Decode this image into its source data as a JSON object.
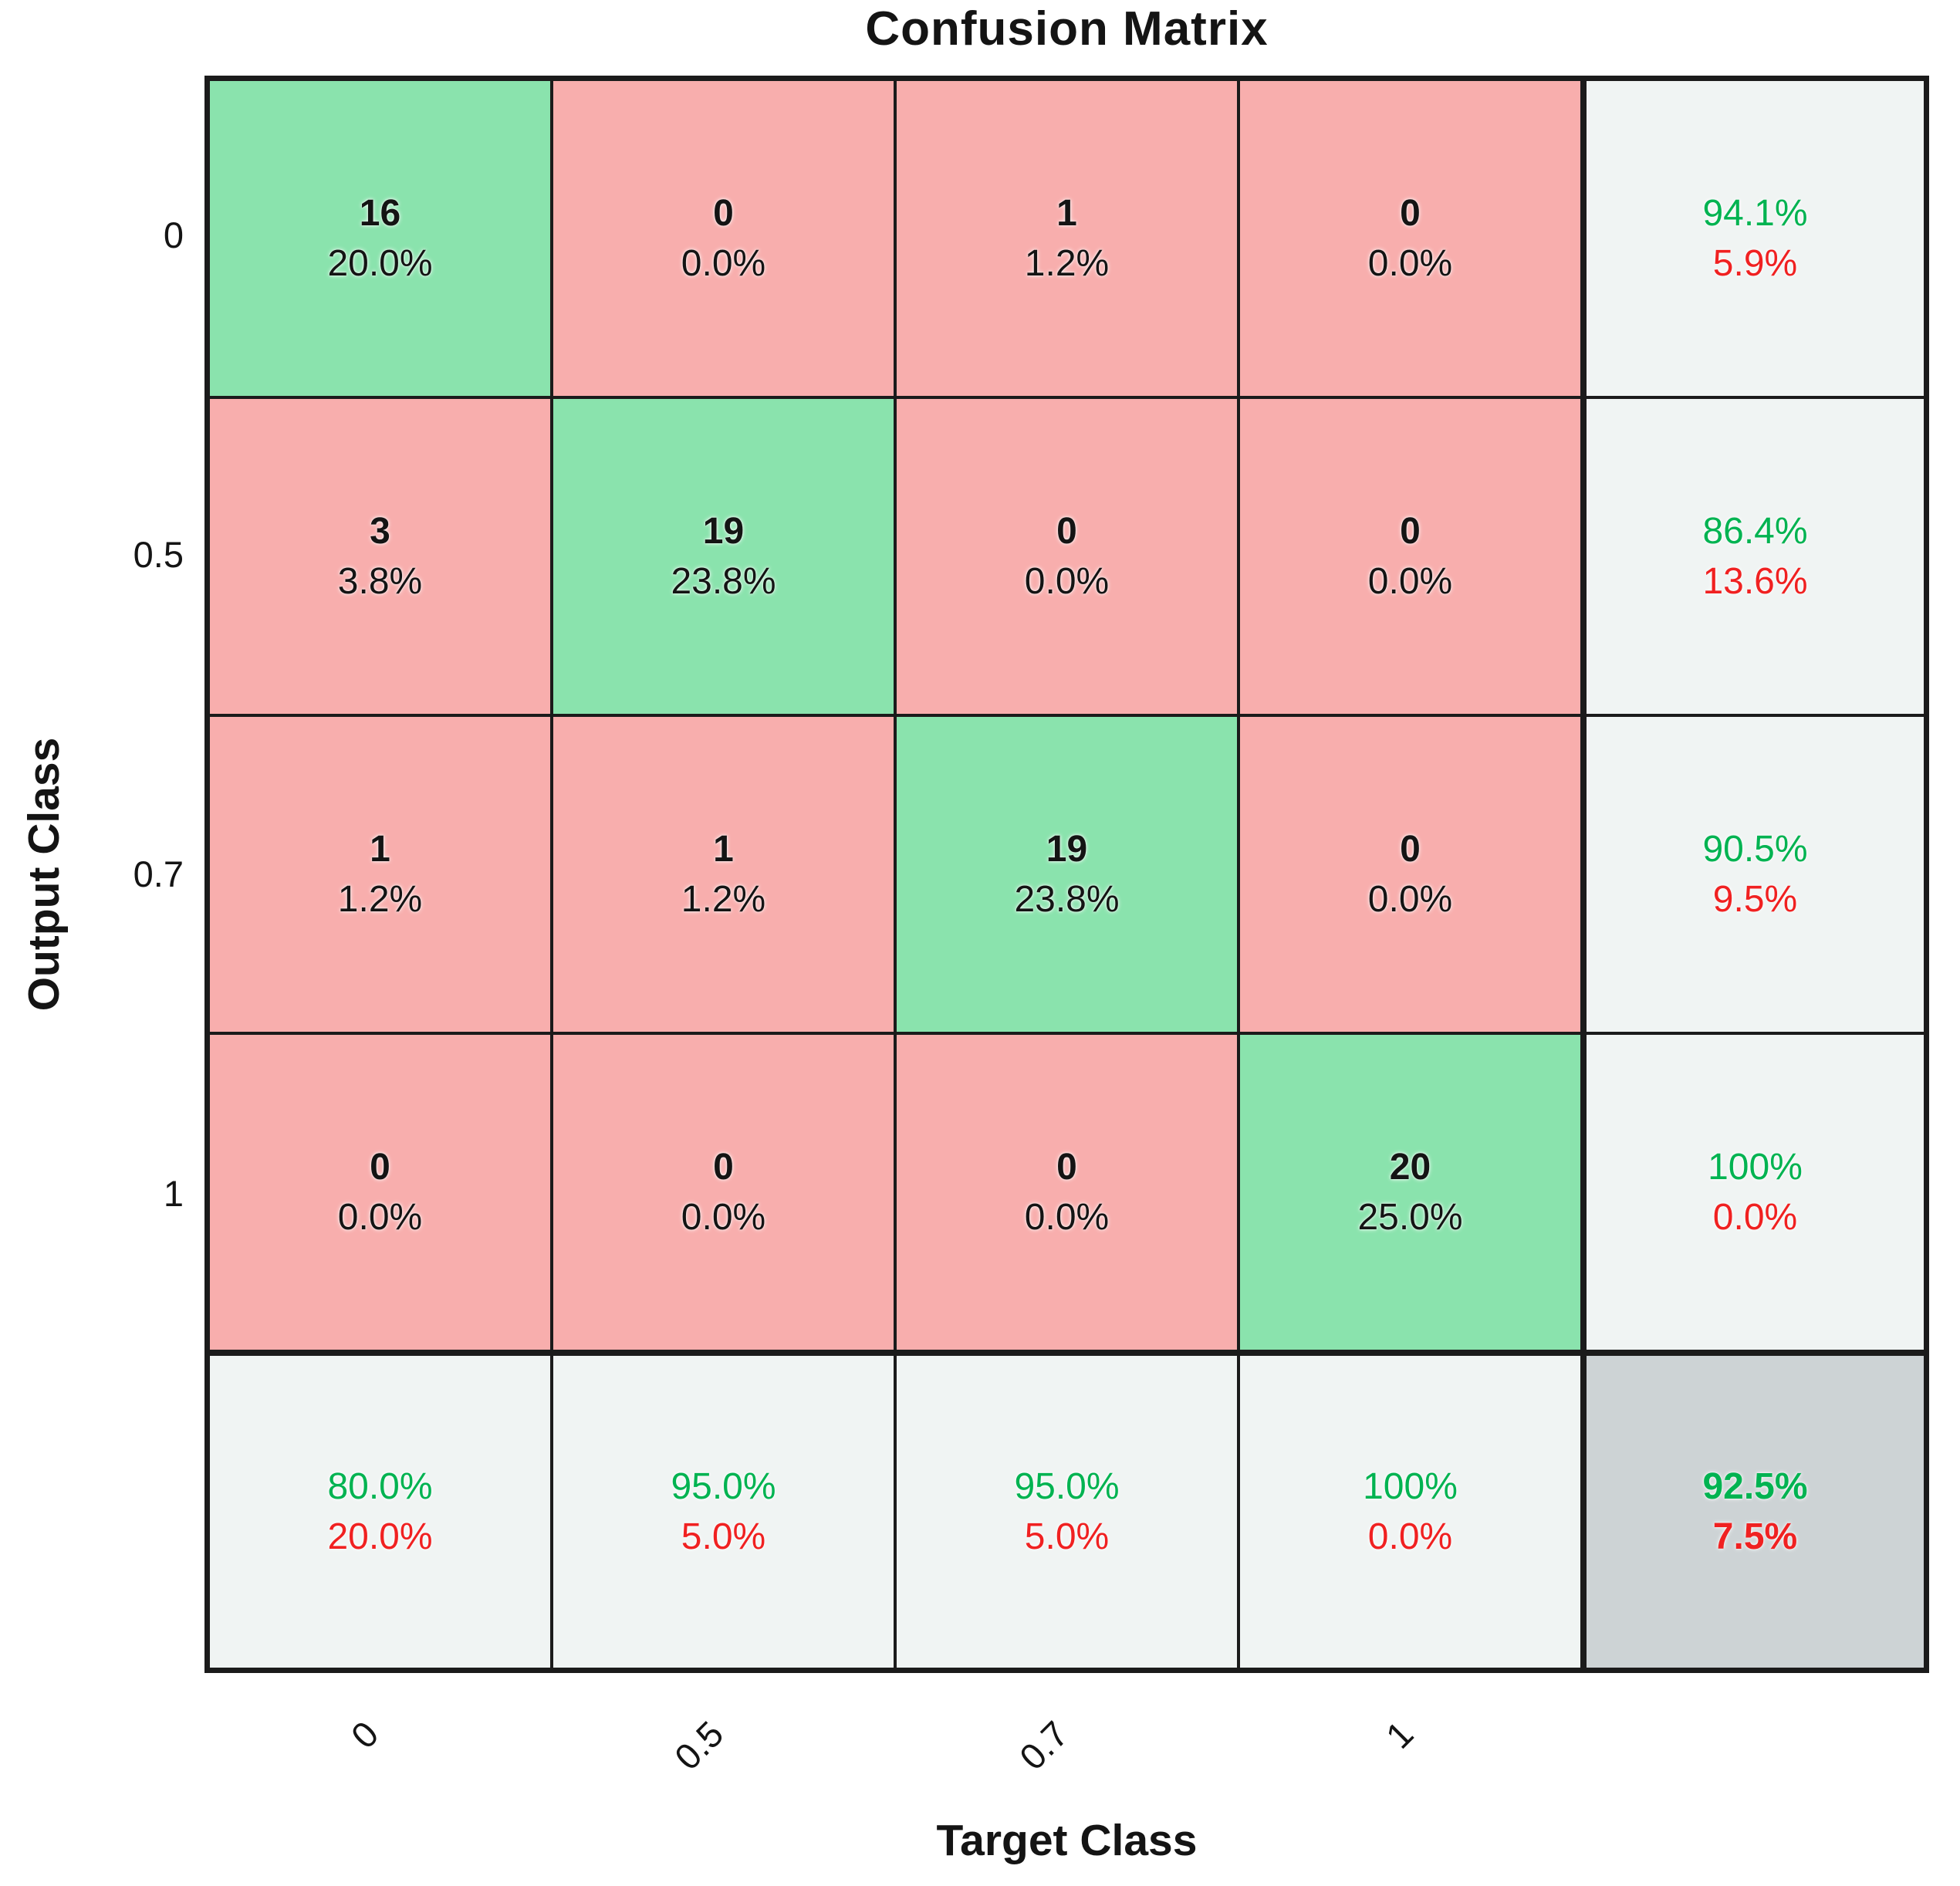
{
  "title": "Confusion Matrix",
  "x_axis": {
    "label": "Target Class",
    "ticks": [
      "0",
      "0.5",
      "0.7",
      "1"
    ]
  },
  "y_axis": {
    "label": "Output Class",
    "ticks": [
      "0",
      "0.5",
      "0.7",
      "1"
    ]
  },
  "colors": {
    "diagonal_bg": "#8AE3AD",
    "off_diagonal_bg": "#F8AEAD",
    "summary_bg": "#F0F4F3",
    "total_bg": "#CDD3D5",
    "good_text": "#00B351",
    "bad_text": "#F02121",
    "count_text": "#141414",
    "grid_line": "#1B1B1B"
  },
  "chart_data": {
    "type": "heatmap",
    "subtype": "confusion-matrix",
    "title": "Confusion Matrix",
    "xlabel": "Target Class",
    "ylabel": "Output Class",
    "classes": [
      "0",
      "0.5",
      "0.7",
      "1"
    ],
    "counts": [
      [
        16,
        0,
        1,
        0
      ],
      [
        3,
        19,
        0,
        0
      ],
      [
        1,
        1,
        19,
        0
      ],
      [
        0,
        0,
        0,
        20
      ]
    ],
    "count_percents": [
      [
        "20.0%",
        "0.0%",
        "1.2%",
        "0.0%"
      ],
      [
        "3.8%",
        "23.8%",
        "0.0%",
        "0.0%"
      ],
      [
        "1.2%",
        "1.2%",
        "23.8%",
        "0.0%"
      ],
      [
        "0.0%",
        "0.0%",
        "0.0%",
        "25.0%"
      ]
    ],
    "row_summary": [
      [
        "94.1%",
        "5.9%"
      ],
      [
        "86.4%",
        "13.6%"
      ],
      [
        "90.5%",
        "9.5%"
      ],
      [
        "100%",
        "0.0%"
      ]
    ],
    "column_summary": [
      [
        "80.0%",
        "20.0%"
      ],
      [
        "95.0%",
        "5.0%"
      ],
      [
        "95.0%",
        "5.0%"
      ],
      [
        "100%",
        "0.0%"
      ]
    ],
    "overall": [
      "92.5%",
      "7.5%"
    ],
    "legend_position": "none",
    "grid": "on"
  }
}
